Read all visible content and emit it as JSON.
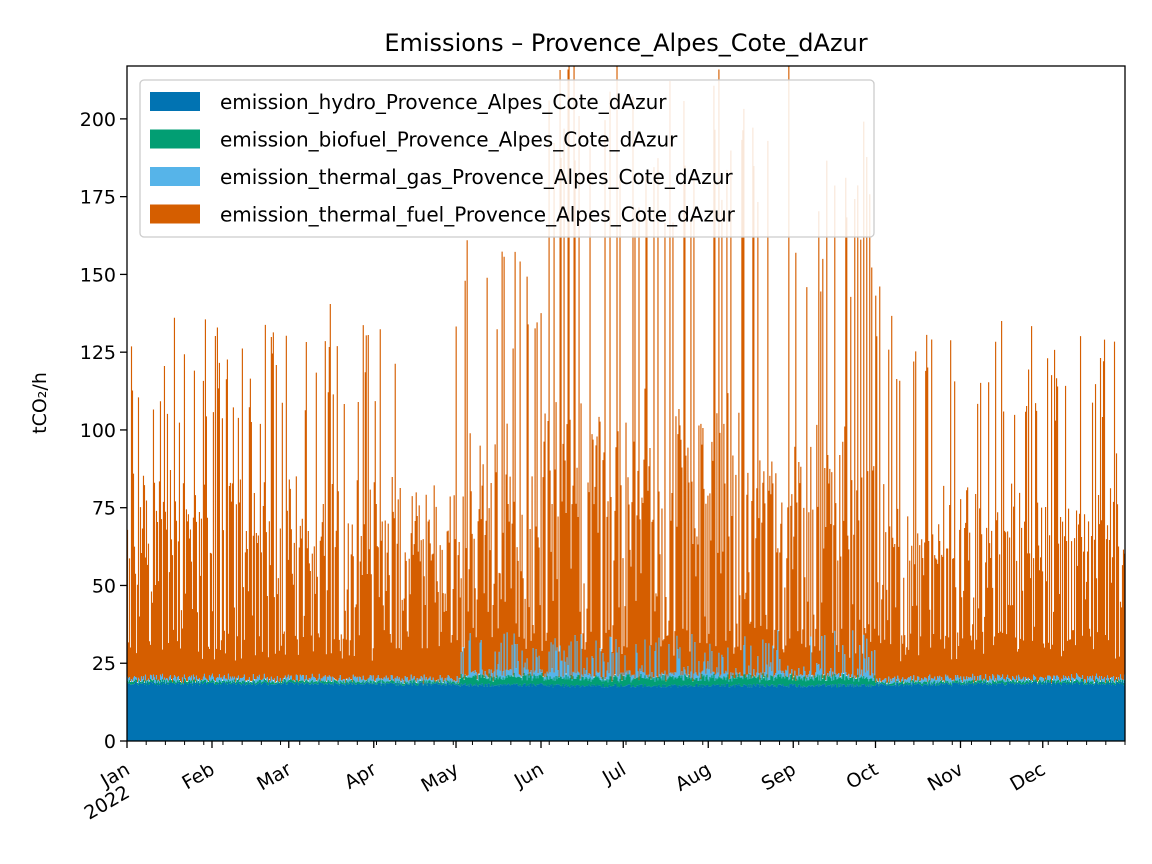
{
  "chart_data": {
    "type": "area",
    "stacked": true,
    "title": "Emissions – Provence_Alpes_Cote_dAzur",
    "xlabel": "",
    "ylabel": "tCO₂/h",
    "ylim": [
      0,
      217
    ],
    "yticks": [
      0,
      25,
      50,
      75,
      100,
      125,
      150,
      175,
      200
    ],
    "xlim": [
      "2022-01-01",
      "2022-12-31"
    ],
    "xticks": [
      {
        "date": "2022-01-01",
        "label": "Jan",
        "sublabel": "2022"
      },
      {
        "date": "2022-02-01",
        "label": "Feb"
      },
      {
        "date": "2022-03-01",
        "label": "Mar"
      },
      {
        "date": "2022-04-01",
        "label": "Apr"
      },
      {
        "date": "2022-05-01",
        "label": "May"
      },
      {
        "date": "2022-06-01",
        "label": "Jun"
      },
      {
        "date": "2022-07-01",
        "label": "Jul"
      },
      {
        "date": "2022-08-01",
        "label": "Aug"
      },
      {
        "date": "2022-09-01",
        "label": "Sep"
      },
      {
        "date": "2022-10-01",
        "label": "Oct"
      },
      {
        "date": "2022-11-01",
        "label": "Nov"
      },
      {
        "date": "2022-12-01",
        "label": "Dec"
      }
    ],
    "legend_position": "upper-left",
    "grid": false,
    "series": [
      {
        "name": "emission_hydro_Provence_Alpes_Cote_dAzur",
        "color": "#0173b2"
      },
      {
        "name": "emission_biofuel_Provence_Alpes_Cote_dAzur",
        "color": "#029e73"
      },
      {
        "name": "emission_thermal_gas_Provence_Alpes_Cote_dAzur",
        "color": "#56b4e9"
      },
      {
        "name": "emission_thermal_fuel_Provence_Alpes_Cote_dAzur",
        "color": "#d55e00"
      }
    ],
    "weekly_profile": [
      {
        "period": "2022-01",
        "hydro": 18.5,
        "fuel_base": 48,
        "fuel_peak": 110
      },
      {
        "period": "2022-02",
        "hydro": 18.5,
        "fuel_base": 46,
        "fuel_peak": 109
      },
      {
        "period": "2022-03",
        "hydro": 18.5,
        "fuel_base": 46,
        "fuel_peak": 115
      },
      {
        "period": "2022-04",
        "hydro": 18.3,
        "fuel_base": 46,
        "fuel_peak": 115
      },
      {
        "period": "2022-05",
        "hydro": 18.0,
        "fuel_base": 50,
        "fuel_peak": 140
      },
      {
        "period": "2022-06",
        "hydro": 17.8,
        "fuel_base": 60,
        "fuel_peak": 190
      },
      {
        "period": "2022-07",
        "hydro": 17.8,
        "fuel_base": 60,
        "fuel_peak": 190
      },
      {
        "period": "2022-08",
        "hydro": 17.8,
        "fuel_base": 60,
        "fuel_peak": 190
      },
      {
        "period": "2022-09",
        "hydro": 17.8,
        "fuel_base": 55,
        "fuel_peak": 160
      },
      {
        "period": "2022-10",
        "hydro": 18.2,
        "fuel_base": 46,
        "fuel_peak": 120
      },
      {
        "period": "2022-11",
        "hydro": 18.5,
        "fuel_base": 46,
        "fuel_peak": 112
      },
      {
        "period": "2022-12",
        "hydro": 18.5,
        "fuel_base": 52,
        "fuel_peak": 110
      }
    ]
  }
}
